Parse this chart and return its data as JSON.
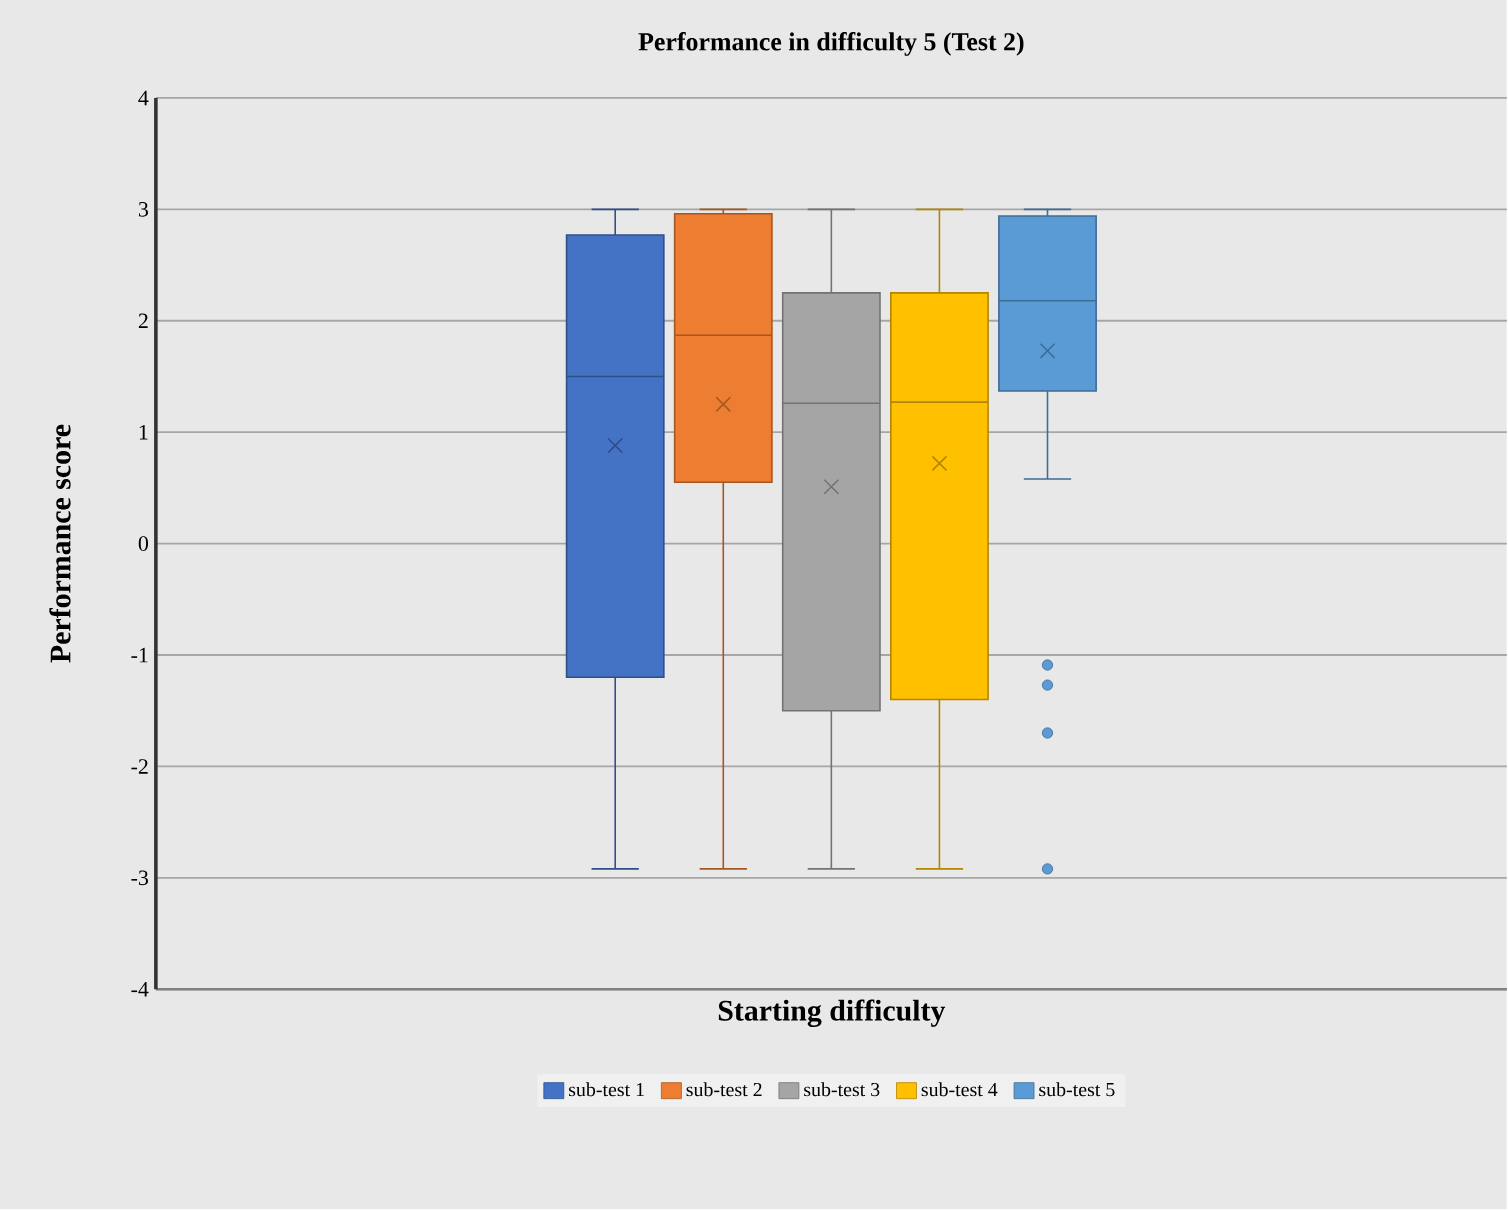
{
  "chart_data": {
    "type": "box",
    "title": "Performance in difficulty 5 (Test 2)",
    "xlabel": "Starting difficulty",
    "ylabel": "Performance score",
    "categories": [
      null
    ],
    "series": [
      {
        "name": "sub-test 1",
        "color": "#4472c4",
        "boxes": [
          {
            "low": -2.92,
            "q1": -1.2,
            "median": 1.5,
            "q3": 2.77,
            "high": 3.0,
            "mean": 0.88
          }
        ]
      },
      {
        "name": "sub-test 2",
        "color": "#ed7d31",
        "boxes": [
          {
            "low": -2.92,
            "q1": 0.55,
            "median": 1.87,
            "q3": 2.96,
            "high": 3.0,
            "mean": 1.25
          }
        ]
      },
      {
        "name": "sub-test 3",
        "color": "#a5a5a5",
        "boxes": [
          {
            "low": -2.92,
            "q1": -1.5,
            "median": 1.26,
            "q3": 2.25,
            "high": 3.0,
            "mean": 0.51
          }
        ]
      },
      {
        "name": "sub-test 4",
        "color": "#ffc000",
        "boxes": [
          {
            "low": -2.92,
            "q1": -1.4,
            "median": 1.27,
            "q3": 2.25,
            "high": 3.0,
            "mean": 0.72
          }
        ]
      },
      {
        "name": "sub-test 5",
        "color": "#5b9bd5",
        "boxes": [
          {
            "low": 0.58,
            "q1": 1.37,
            "median": 2.18,
            "q3": 2.94,
            "high": 3.0,
            "mean": 1.73,
            "outliers": [
              -1.09,
              -1.27,
              -1.7,
              -2.92
            ]
          }
        ]
      }
    ],
    "ylim": [
      -4,
      4
    ],
    "yticks": [
      -4,
      -3,
      -2,
      -1,
      0,
      1,
      2,
      3,
      4
    ],
    "grid": "y",
    "legend": "bottom"
  }
}
